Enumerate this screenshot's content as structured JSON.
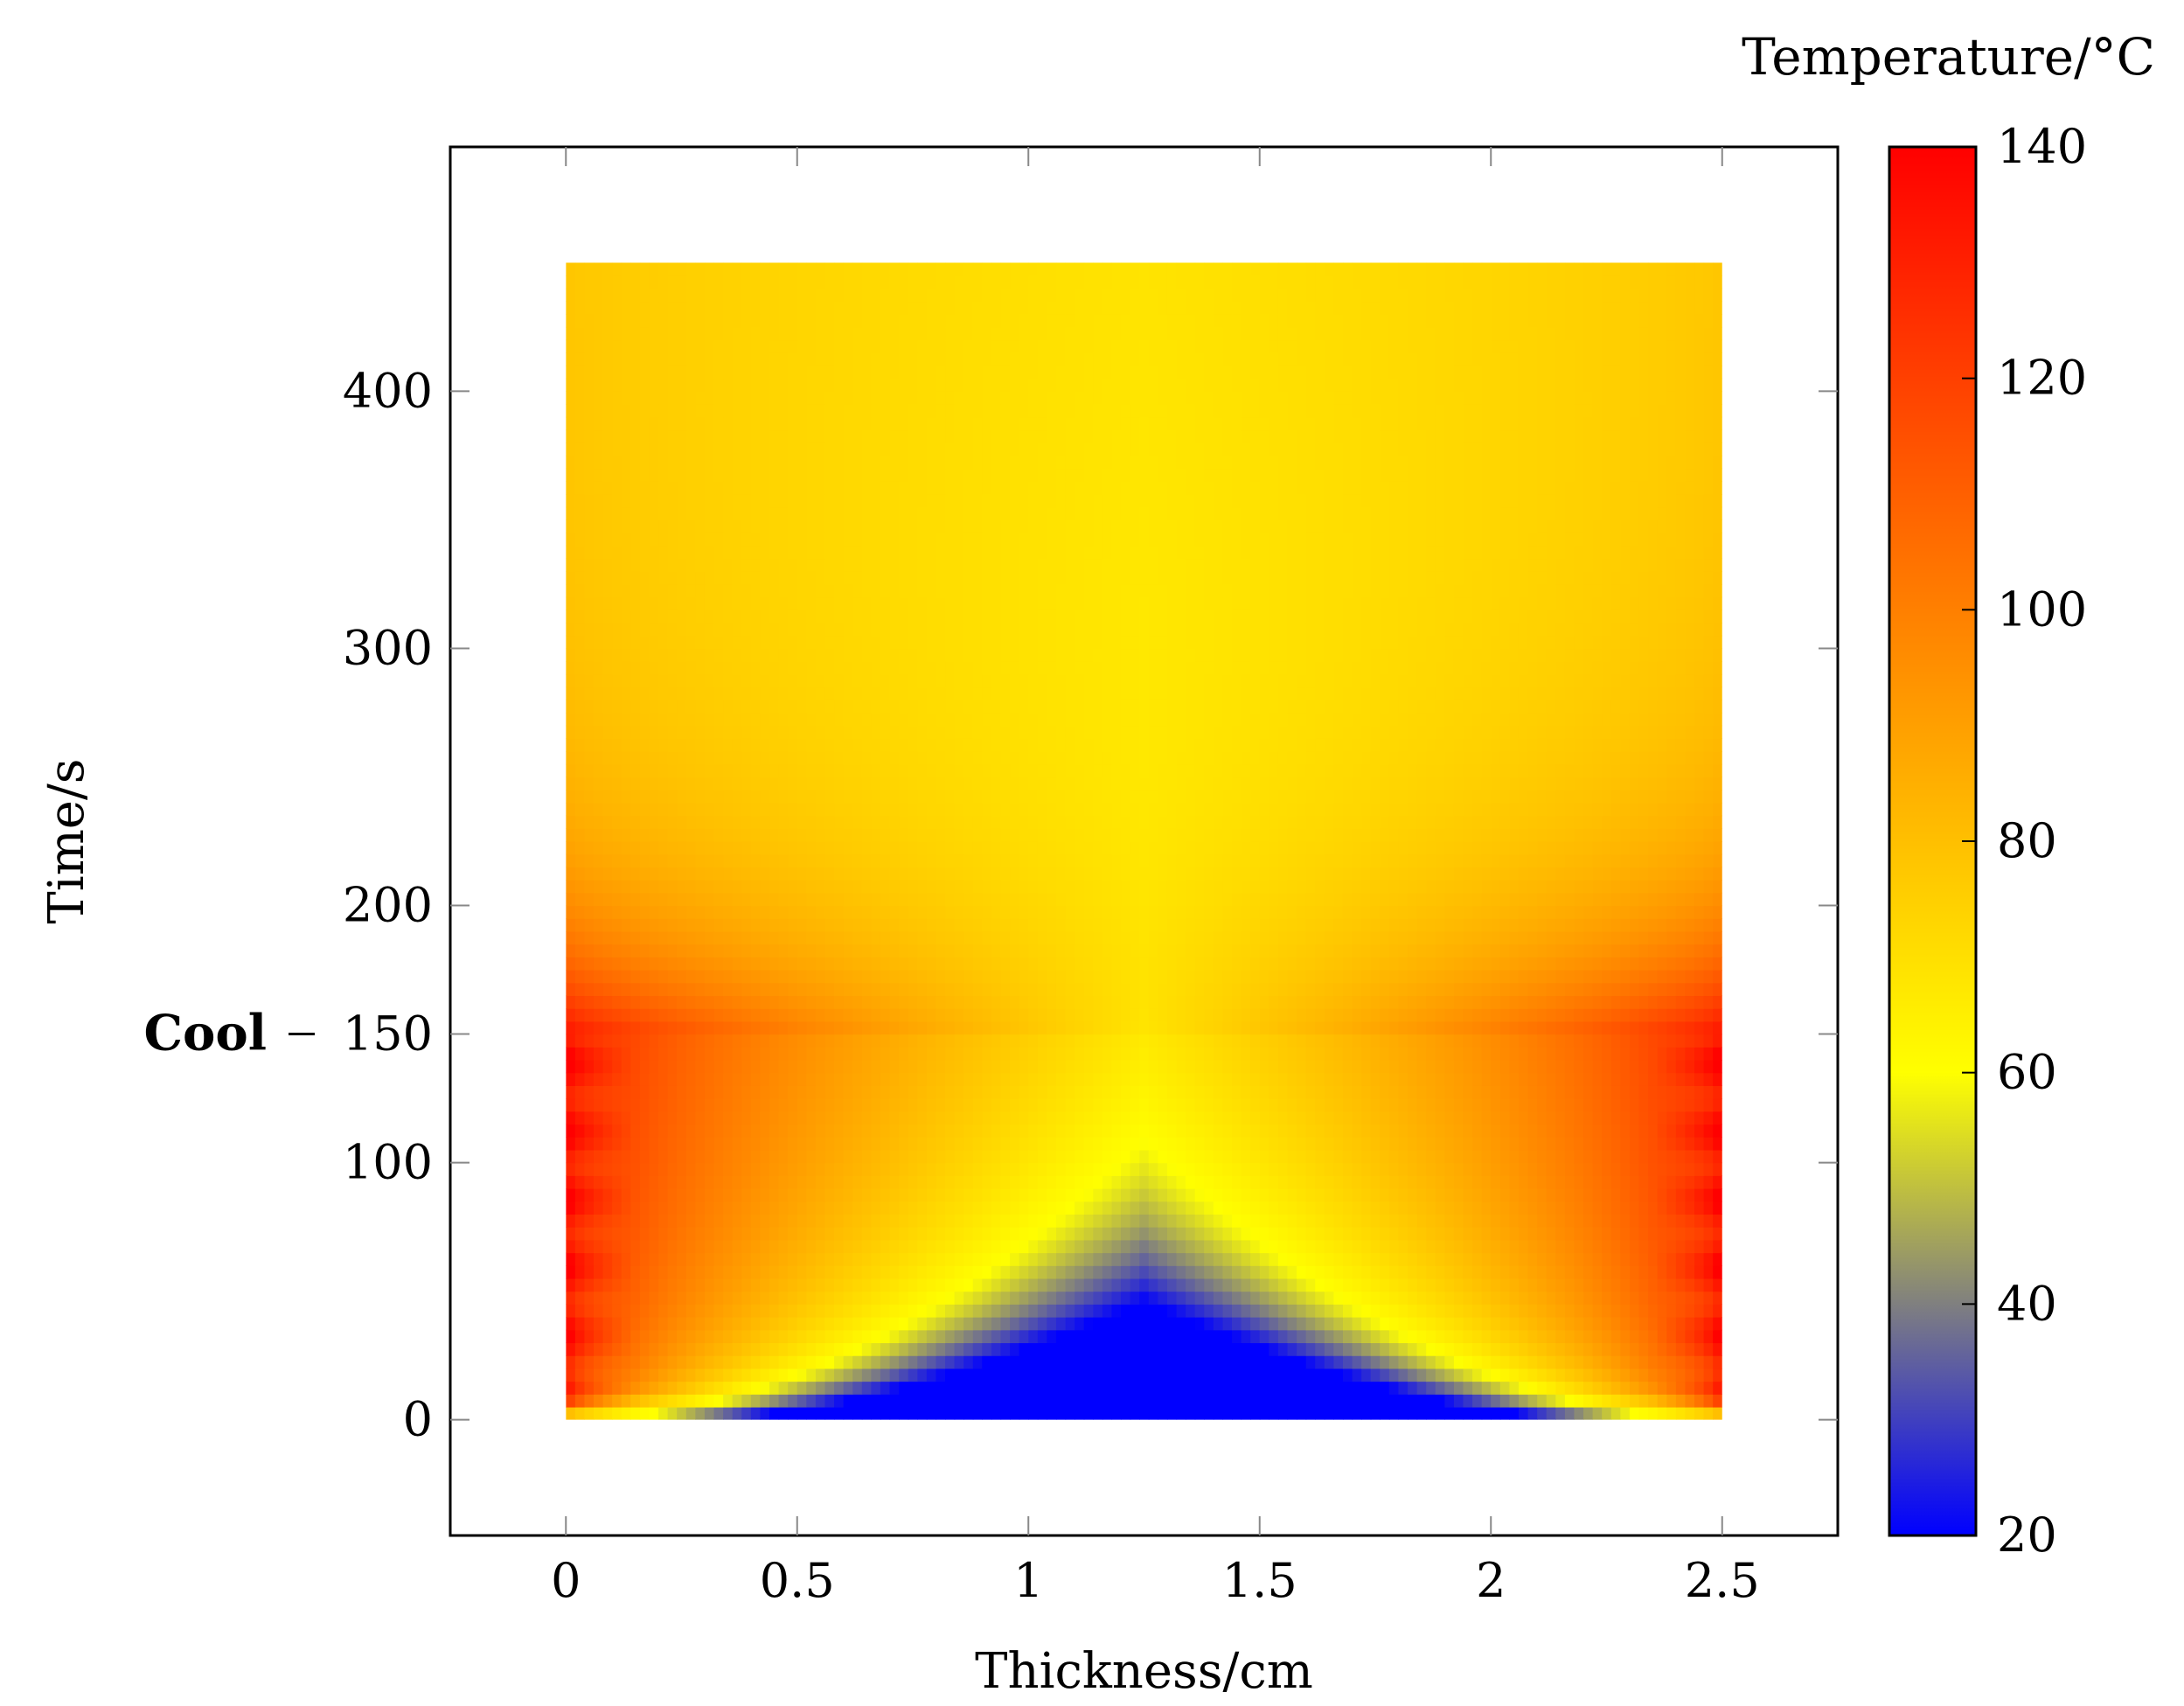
{
  "chart_data": {
    "type": "heatmap",
    "title": "",
    "xlabel": "Thickness/cm",
    "ylabel": "Time/s",
    "xlim": [
      -0.25,
      2.75
    ],
    "ylim": [
      -45,
      495
    ],
    "x_ticks": [
      0,
      0.5,
      1,
      1.5,
      2,
      2.5
    ],
    "x_tick_labels": [
      "0",
      "0.5",
      "1",
      "1.5",
      "2",
      "2.5"
    ],
    "y_ticks": [
      0,
      100,
      150,
      200,
      300,
      400
    ],
    "y_tick_labels": [
      "0",
      "100",
      "150",
      "200",
      "300",
      "400"
    ],
    "data_extent": {
      "x": [
        0,
        2.5
      ],
      "y": [
        0,
        450
      ]
    },
    "colorbar": {
      "label": "Temperature/°C",
      "range": [
        20,
        140
      ],
      "ticks": [
        20,
        40,
        60,
        80,
        100,
        120,
        140
      ],
      "tick_labels": [
        "20",
        "40",
        "60",
        "80",
        "100",
        "120",
        "140"
      ],
      "colormap": [
        {
          "value": 20,
          "color": "#0000ff"
        },
        {
          "value": 60,
          "color": "#ffff00"
        },
        {
          "value": 140,
          "color": "#ff0000"
        }
      ]
    },
    "annotations": [
      {
        "text": "Cool",
        "y": 150
      }
    ],
    "grid": false,
    "legend": "none"
  }
}
